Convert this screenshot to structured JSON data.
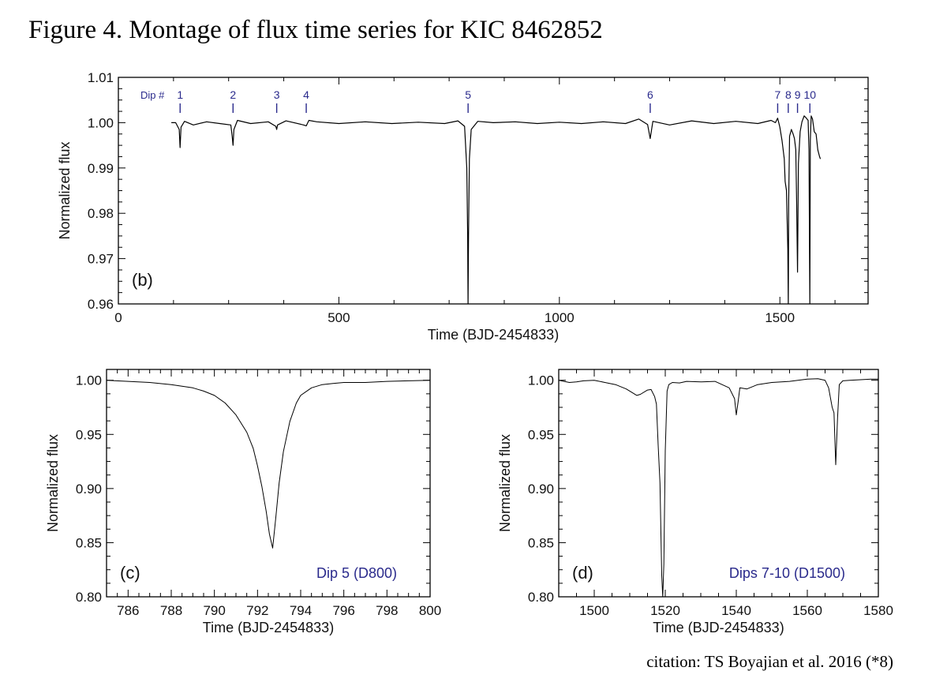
{
  "figure": {
    "title": "Figure 4. Montage of flux time series for KIC 8462852",
    "citation": "citation: TS Boyajian et al. 2016 (*8)"
  },
  "colors": {
    "line": "#000000",
    "frame": "#000000",
    "annotation": "#2a2a8c"
  },
  "chart_data": [
    {
      "id": "b",
      "type": "line",
      "panel_label": "(b)",
      "xlabel": "Time (BJD-2454833)",
      "ylabel": "Normalized flux",
      "xlim": [
        0,
        1700
      ],
      "ylim": [
        0.96,
        1.01
      ],
      "xticks": [
        0,
        500,
        1000,
        1500
      ],
      "yticks": [
        0.96,
        0.97,
        0.98,
        0.99,
        1.0,
        1.01
      ],
      "ytick_labels": [
        "0.96",
        "0.97",
        "0.98",
        "0.99",
        "1.00",
        "1.01"
      ],
      "dip_header": "Dip #",
      "dip_markers": [
        {
          "label": "1",
          "x": 140
        },
        {
          "label": "2",
          "x": 260
        },
        {
          "label": "3",
          "x": 359
        },
        {
          "label": "4",
          "x": 426
        },
        {
          "label": "5",
          "x": 793
        },
        {
          "label": "6",
          "x": 1206
        },
        {
          "label": "7",
          "x": 1495
        },
        {
          "label": "8",
          "x": 1519
        },
        {
          "label": "9",
          "x": 1540
        },
        {
          "label": "10",
          "x": 1568
        }
      ],
      "series": [
        {
          "x": [
            120,
            130,
            138,
            140,
            142,
            150,
            170,
            200,
            230,
            255,
            258,
            260,
            262,
            270,
            300,
            340,
            357,
            359,
            361,
            380,
            420,
            426,
            432,
            450,
            500,
            560,
            620,
            680,
            740,
            770,
            785,
            790,
            792,
            793,
            794,
            796,
            800,
            815,
            850,
            900,
            950,
            1000,
            1050,
            1100,
            1150,
            1180,
            1200,
            1206,
            1212,
            1250,
            1300,
            1350,
            1400,
            1450,
            1480,
            1490,
            1495,
            1500,
            1505,
            1510,
            1512,
            1515,
            1518,
            1519,
            1520,
            1522,
            1526,
            1530,
            1533,
            1536,
            1538,
            1540,
            1542,
            1546,
            1550,
            1555,
            1560,
            1564,
            1566,
            1568,
            1569,
            1571,
            1574,
            1578,
            1582,
            1586,
            1590,
            1592
          ],
          "y": [
            1.0,
            1.0,
            0.9985,
            0.9945,
            0.999,
            1.0003,
            0.9995,
            1.0002,
            0.9998,
            0.9995,
            0.997,
            0.995,
            0.9985,
            1.0005,
            0.9998,
            1.0002,
            0.9992,
            0.9985,
            0.9995,
            1.0004,
            0.9995,
            0.9993,
            1.0005,
            1.0002,
            0.9998,
            1.0002,
            0.9998,
            1.0001,
            0.9998,
            1.0004,
            0.9992,
            0.99,
            0.975,
            0.9595,
            0.975,
            0.992,
            0.9985,
            1.0003,
            1.0,
            1.0002,
            0.9998,
            1.0001,
            0.9998,
            1.0002,
            0.9998,
            1.0008,
            0.9996,
            0.9965,
            1.0003,
            0.9995,
            1.0004,
            0.9998,
            1.0003,
            0.9998,
            1.0005,
            1.0,
            1.001,
            0.999,
            0.996,
            0.992,
            0.987,
            0.985,
            0.972,
            0.9595,
            0.983,
            0.997,
            0.9985,
            0.9975,
            0.9965,
            0.994,
            0.982,
            0.967,
            0.991,
            0.998,
            1.0002,
            1.0015,
            1.001,
            1.0005,
            0.994,
            0.9595,
            0.996,
            1.0015,
            1.0008,
            0.998,
            0.9975,
            0.994,
            0.9925,
            0.992
          ]
        }
      ]
    },
    {
      "id": "c",
      "type": "line",
      "panel_label": "(c)",
      "annotation": "Dip 5 (D800)",
      "xlabel": "Time (BJD-2454833)",
      "ylabel": "Normalized flux",
      "xlim": [
        785,
        800
      ],
      "ylim": [
        0.8,
        1.01
      ],
      "xticks": [
        786,
        788,
        790,
        792,
        794,
        796,
        798,
        800
      ],
      "yticks": [
        0.8,
        0.85,
        0.9,
        0.95,
        1.0
      ],
      "ytick_labels": [
        "0.80",
        "0.85",
        "0.90",
        "0.95",
        "1.00"
      ],
      "series": [
        {
          "x": [
            785.0,
            786.0,
            787.0,
            788.0,
            789.0,
            789.5,
            790.0,
            790.5,
            791.0,
            791.5,
            791.8,
            792.0,
            792.2,
            792.4,
            792.55,
            792.7,
            792.85,
            793.0,
            793.2,
            793.5,
            793.8,
            794.0,
            794.5,
            795.0,
            795.5,
            796.0,
            797.0,
            798.0,
            799.0,
            800.0
          ],
          "y": [
            1.0,
            0.999,
            0.998,
            0.996,
            0.993,
            0.99,
            0.986,
            0.979,
            0.968,
            0.952,
            0.937,
            0.921,
            0.902,
            0.879,
            0.858,
            0.845,
            0.874,
            0.905,
            0.934,
            0.962,
            0.979,
            0.986,
            0.993,
            0.996,
            0.997,
            0.998,
            0.998,
            0.999,
            0.9995,
            1.0
          ]
        }
      ]
    },
    {
      "id": "d",
      "type": "line",
      "panel_label": "(d)",
      "annotation": "Dips 7-10 (D1500)",
      "xlabel": "Time (BJD-2454833)",
      "ylabel": "Normalized flux",
      "xlim": [
        1490,
        1580
      ],
      "ylim": [
        0.8,
        1.01
      ],
      "xticks": [
        1500,
        1520,
        1540,
        1560,
        1580
      ],
      "yticks": [
        0.8,
        0.85,
        0.9,
        0.95,
        1.0
      ],
      "ytick_labels": [
        "0.80",
        "0.85",
        "0.90",
        "0.95",
        "1.00"
      ],
      "series": [
        {
          "x": [
            1490,
            1493,
            1495,
            1497,
            1500,
            1503,
            1506,
            1509,
            1511,
            1512,
            1513,
            1515,
            1516,
            1517,
            1517.5,
            1518,
            1518.5,
            1519,
            1519.3,
            1519.6,
            1520,
            1520.5,
            1521,
            1522,
            1524,
            1526,
            1530,
            1534,
            1538,
            1539.5,
            1540,
            1540.5,
            1541,
            1543,
            1546,
            1550,
            1555,
            1560,
            1563,
            1565,
            1566,
            1567,
            1567.5,
            1568,
            1568.5,
            1569,
            1570,
            1572,
            1575,
            1578,
            1580
          ],
          "y": [
            1.0,
            0.998,
            0.9985,
            0.9995,
            1.0,
            0.998,
            0.996,
            0.992,
            0.988,
            0.986,
            0.987,
            0.991,
            0.9915,
            0.985,
            0.978,
            0.94,
            0.905,
            0.82,
            0.8,
            0.83,
            0.935,
            0.99,
            0.996,
            0.998,
            0.9975,
            0.999,
            0.9985,
            0.999,
            0.993,
            0.983,
            0.968,
            0.98,
            0.993,
            0.992,
            0.996,
            0.998,
            0.999,
            1.001,
            1.0015,
            1.0,
            0.993,
            0.975,
            0.97,
            0.922,
            0.965,
            0.996,
            0.9995,
            1.0,
            1.0005,
            1.001,
            1.001
          ]
        }
      ]
    }
  ]
}
